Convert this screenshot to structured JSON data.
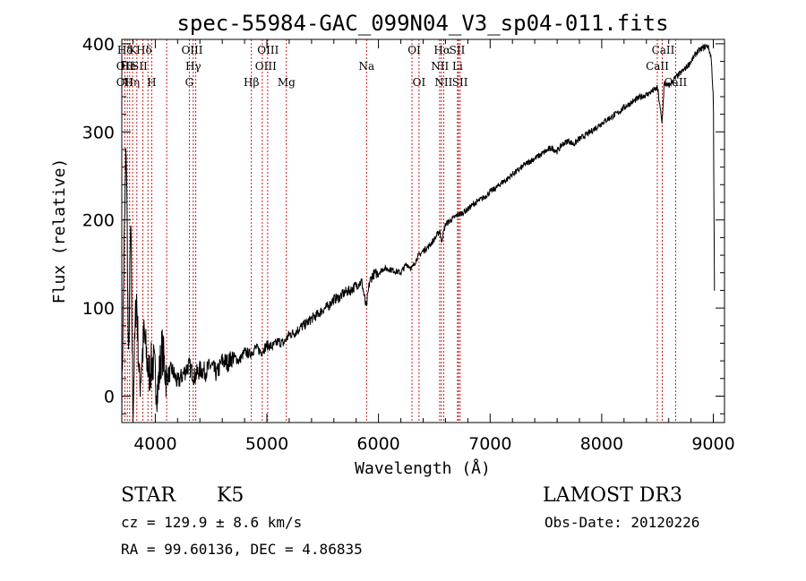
{
  "chart_data": {
    "type": "line",
    "title": "spec-55984-GAC_099N04_V3_sp04-011.fits",
    "xlabel": "Wavelength (Å)",
    "ylabel": "Flux (relative)",
    "xlim": [
      3700,
      9100
    ],
    "ylim": [
      -30,
      405
    ],
    "xticks": [
      {
        "value": 4000,
        "label": "4000"
      },
      {
        "value": 5000,
        "label": "5000"
      },
      {
        "value": 6000,
        "label": "6000"
      },
      {
        "value": 7000,
        "label": "7000"
      },
      {
        "value": 8000,
        "label": "8000"
      },
      {
        "value": 9000,
        "label": "9000"
      }
    ],
    "yticks": [
      {
        "value": 0,
        "label": "0"
      },
      {
        "value": 100,
        "label": "100"
      },
      {
        "value": 200,
        "label": "200"
      },
      {
        "value": 300,
        "label": "300"
      },
      {
        "value": 400,
        "label": "400"
      }
    ],
    "series": [
      {
        "name": "flux",
        "x": [
          3700,
          3720,
          3740,
          3760,
          3780,
          3800,
          3830,
          3860,
          3900,
          3940,
          3980,
          4020,
          4060,
          4100,
          4150,
          4200,
          4250,
          4300,
          4350,
          4400,
          4450,
          4500,
          4550,
          4600,
          4650,
          4700,
          4750,
          4800,
          4850,
          4900,
          4950,
          5000,
          5050,
          5100,
          5150,
          5200,
          5250,
          5300,
          5350,
          5400,
          5450,
          5500,
          5550,
          5600,
          5650,
          5700,
          5750,
          5800,
          5850,
          5890,
          5920,
          5950,
          6000,
          6050,
          6100,
          6150,
          6200,
          6250,
          6300,
          6350,
          6400,
          6450,
          6500,
          6550,
          6563,
          6600,
          6650,
          6700,
          6750,
          6800,
          6850,
          6900,
          6950,
          7000,
          7050,
          7100,
          7150,
          7200,
          7250,
          7300,
          7350,
          7400,
          7450,
          7500,
          7550,
          7600,
          7650,
          7700,
          7750,
          7800,
          7850,
          7900,
          7950,
          8000,
          8050,
          8100,
          8150,
          8200,
          8250,
          8300,
          8350,
          8400,
          8450,
          8500,
          8540,
          8560,
          8600,
          8650,
          8700,
          8750,
          8800,
          8850,
          8900,
          8950,
          8980,
          9000,
          9010
        ],
        "y": [
          -10,
          160,
          290,
          30,
          200,
          -15,
          120,
          10,
          70,
          25,
          40,
          5,
          55,
          20,
          30,
          15,
          25,
          35,
          22,
          30,
          28,
          35,
          25,
          40,
          38,
          45,
          40,
          50,
          48,
          55,
          50,
          58,
          56,
          62,
          60,
          70,
          72,
          78,
          82,
          88,
          92,
          98,
          102,
          110,
          112,
          118,
          120,
          126,
          130,
          100,
          130,
          138,
          140,
          145,
          144,
          142,
          140,
          150,
          145,
          158,
          165,
          170,
          178,
          188,
          175,
          195,
          200,
          205,
          208,
          212,
          218,
          222,
          226,
          232,
          236,
          242,
          246,
          252,
          256,
          262,
          266,
          270,
          274,
          278,
          282,
          278,
          286,
          290,
          286,
          292,
          296,
          300,
          305,
          310,
          314,
          318,
          322,
          328,
          332,
          336,
          340,
          342,
          346,
          350,
          310,
          355,
          352,
          360,
          366,
          372,
          380,
          390,
          395,
          398,
          385,
          340,
          120
        ]
      }
    ],
    "lines": [
      {
        "label": "Hδ",
        "wave": 3730,
        "row": 0
      },
      {
        "label": "K",
        "wave": 3800,
        "row": 0
      },
      {
        "label": "Hδ",
        "wave": 3900,
        "row": 0
      },
      {
        "label": "OIII",
        "wave": 4330,
        "row": 0
      },
      {
        "label": "OIII",
        "wave": 5010,
        "row": 0
      },
      {
        "label": "OI",
        "wave": 6320,
        "row": 0
      },
      {
        "label": "Hα",
        "wave": 6570,
        "row": 0
      },
      {
        "label": "SII",
        "wave": 6705,
        "row": 0
      },
      {
        "label": "CaII",
        "wave": 8550,
        "row": 0
      },
      {
        "label": "OII",
        "wave": 3727,
        "row": 1
      },
      {
        "label": "He",
        "wave": 3760,
        "row": 1
      },
      {
        "label": "SII",
        "wave": 3860,
        "row": 1
      },
      {
        "label": "Hγ",
        "wave": 4340,
        "row": 1
      },
      {
        "label": "OIII",
        "wave": 4990,
        "row": 1
      },
      {
        "label": "Na",
        "wave": 5893,
        "row": 1
      },
      {
        "label": "NII",
        "wave": 6550,
        "row": 1
      },
      {
        "label": "Li",
        "wave": 6708,
        "row": 1
      },
      {
        "label": "CaII",
        "wave": 8498,
        "row": 1
      },
      {
        "label": "OII",
        "wave": 3727,
        "row": 2
      },
      {
        "label": "Hη",
        "wave": 3790,
        "row": 2
      },
      {
        "label": "H",
        "wave": 3968,
        "row": 2
      },
      {
        "label": "G",
        "wave": 4305,
        "row": 2
      },
      {
        "label": "Hβ",
        "wave": 4861,
        "row": 2
      },
      {
        "label": "Mg",
        "wave": 5175,
        "row": 2
      },
      {
        "label": "OI",
        "wave": 6363,
        "row": 2
      },
      {
        "label": "NII",
        "wave": 6584,
        "row": 2
      },
      {
        "label": "SII",
        "wave": 6730,
        "row": 2
      },
      {
        "label": "CaII",
        "wave": 8662,
        "row": 2
      }
    ],
    "line_waves": [
      3727,
      3750,
      3771,
      3797,
      3835,
      3889,
      3934,
      3968,
      4102,
      4305,
      4340,
      4363,
      4861,
      4959,
      5007,
      5175,
      5893,
      6300,
      6363,
      6548,
      6563,
      6584,
      6708,
      6717,
      6731,
      8498,
      8542,
      8662
    ]
  },
  "footer": {
    "object_class": "STAR",
    "subclass": "K5",
    "survey": "LAMOST DR3",
    "cz": "cz = 129.9 ± 8.6 km/s",
    "obs_date": "Obs-Date: 20120226",
    "radec": "RA =  99.60136, DEC =   4.86835"
  }
}
